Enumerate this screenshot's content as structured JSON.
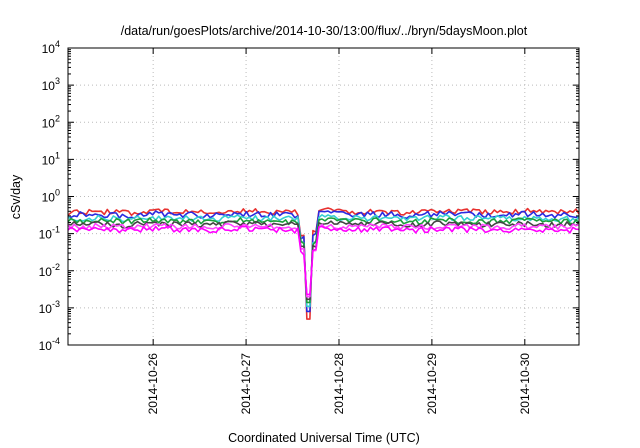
{
  "chart_data": {
    "type": "line",
    "title": "/data/run/goesPlots/archive/2014-10-30/13:00/flux/../bryn/5daysMoon.plot",
    "xlabel": "Coordinated Universal Time (UTC)",
    "ylabel": "cSv/day",
    "yscale": "log",
    "ylim": [
      0.0001,
      10000
    ],
    "xlim": [
      "2014-10-25 02:00",
      "2014-10-30 14:00"
    ],
    "xtick_labels": [
      "2014-10-26",
      "2014-10-27",
      "2014-10-28",
      "2014-10-29",
      "2014-10-30"
    ],
    "ytick_labels": [
      {
        "base": "10",
        "exp": "-4"
      },
      {
        "base": "10",
        "exp": "-3"
      },
      {
        "base": "10",
        "exp": "-2"
      },
      {
        "base": "10",
        "exp": "-1"
      },
      {
        "base": "10",
        "exp": "0"
      },
      {
        "base": "10",
        "exp": "1"
      },
      {
        "base": "10",
        "exp": "2"
      },
      {
        "base": "10",
        "exp": "3"
      },
      {
        "base": "10",
        "exp": "4"
      }
    ],
    "grid": true,
    "legend": "none",
    "colors": [
      "#e8312f",
      "#2a2ae0",
      "#35d0d0",
      "#1c9e3a",
      "#444444",
      "#ff44ff",
      "#ff00ff"
    ],
    "dip": {
      "x": "2014-10-27 16:00",
      "min_value": 0.0005
    },
    "series": [
      {
        "values": [
          0.38,
          0.4,
          0.36,
          0.42,
          0.39,
          0.37,
          0.41,
          0.4,
          0.38,
          0.43,
          0.39,
          0.4,
          0.37,
          0.41,
          0.4,
          0.39,
          0.42,
          0.38,
          0.4
        ]
      },
      {
        "values": [
          0.32,
          0.34,
          0.3,
          0.35,
          0.33,
          0.31,
          0.34,
          0.33,
          0.32,
          0.36,
          0.33,
          0.34,
          0.31,
          0.35,
          0.33,
          0.32,
          0.35,
          0.32,
          0.33
        ]
      },
      {
        "values": [
          0.26,
          0.27,
          0.25,
          0.28,
          0.26,
          0.25,
          0.27,
          0.26,
          0.25,
          0.28,
          0.26,
          0.27,
          0.25,
          0.28,
          0.26,
          0.26,
          0.27,
          0.25,
          0.26
        ]
      },
      {
        "values": [
          0.22,
          0.23,
          0.21,
          0.23,
          0.22,
          0.21,
          0.23,
          0.22,
          0.21,
          0.24,
          0.22,
          0.23,
          0.21,
          0.23,
          0.22,
          0.22,
          0.23,
          0.21,
          0.22
        ]
      },
      {
        "values": [
          0.18,
          0.19,
          0.17,
          0.19,
          0.18,
          0.17,
          0.19,
          0.18,
          0.18,
          0.19,
          0.18,
          0.19,
          0.17,
          0.19,
          0.18,
          0.18,
          0.19,
          0.17,
          0.18
        ]
      },
      {
        "values": [
          0.155,
          0.16,
          0.15,
          0.165,
          0.155,
          0.15,
          0.16,
          0.155,
          0.15,
          0.165,
          0.155,
          0.16,
          0.15,
          0.16,
          0.155,
          0.15,
          0.16,
          0.15,
          0.155
        ]
      },
      {
        "values": [
          0.13,
          0.135,
          0.12,
          0.14,
          0.13,
          0.12,
          0.135,
          0.13,
          0.125,
          0.14,
          0.13,
          0.135,
          0.12,
          0.135,
          0.13,
          0.125,
          0.135,
          0.12,
          0.13
        ]
      }
    ]
  }
}
